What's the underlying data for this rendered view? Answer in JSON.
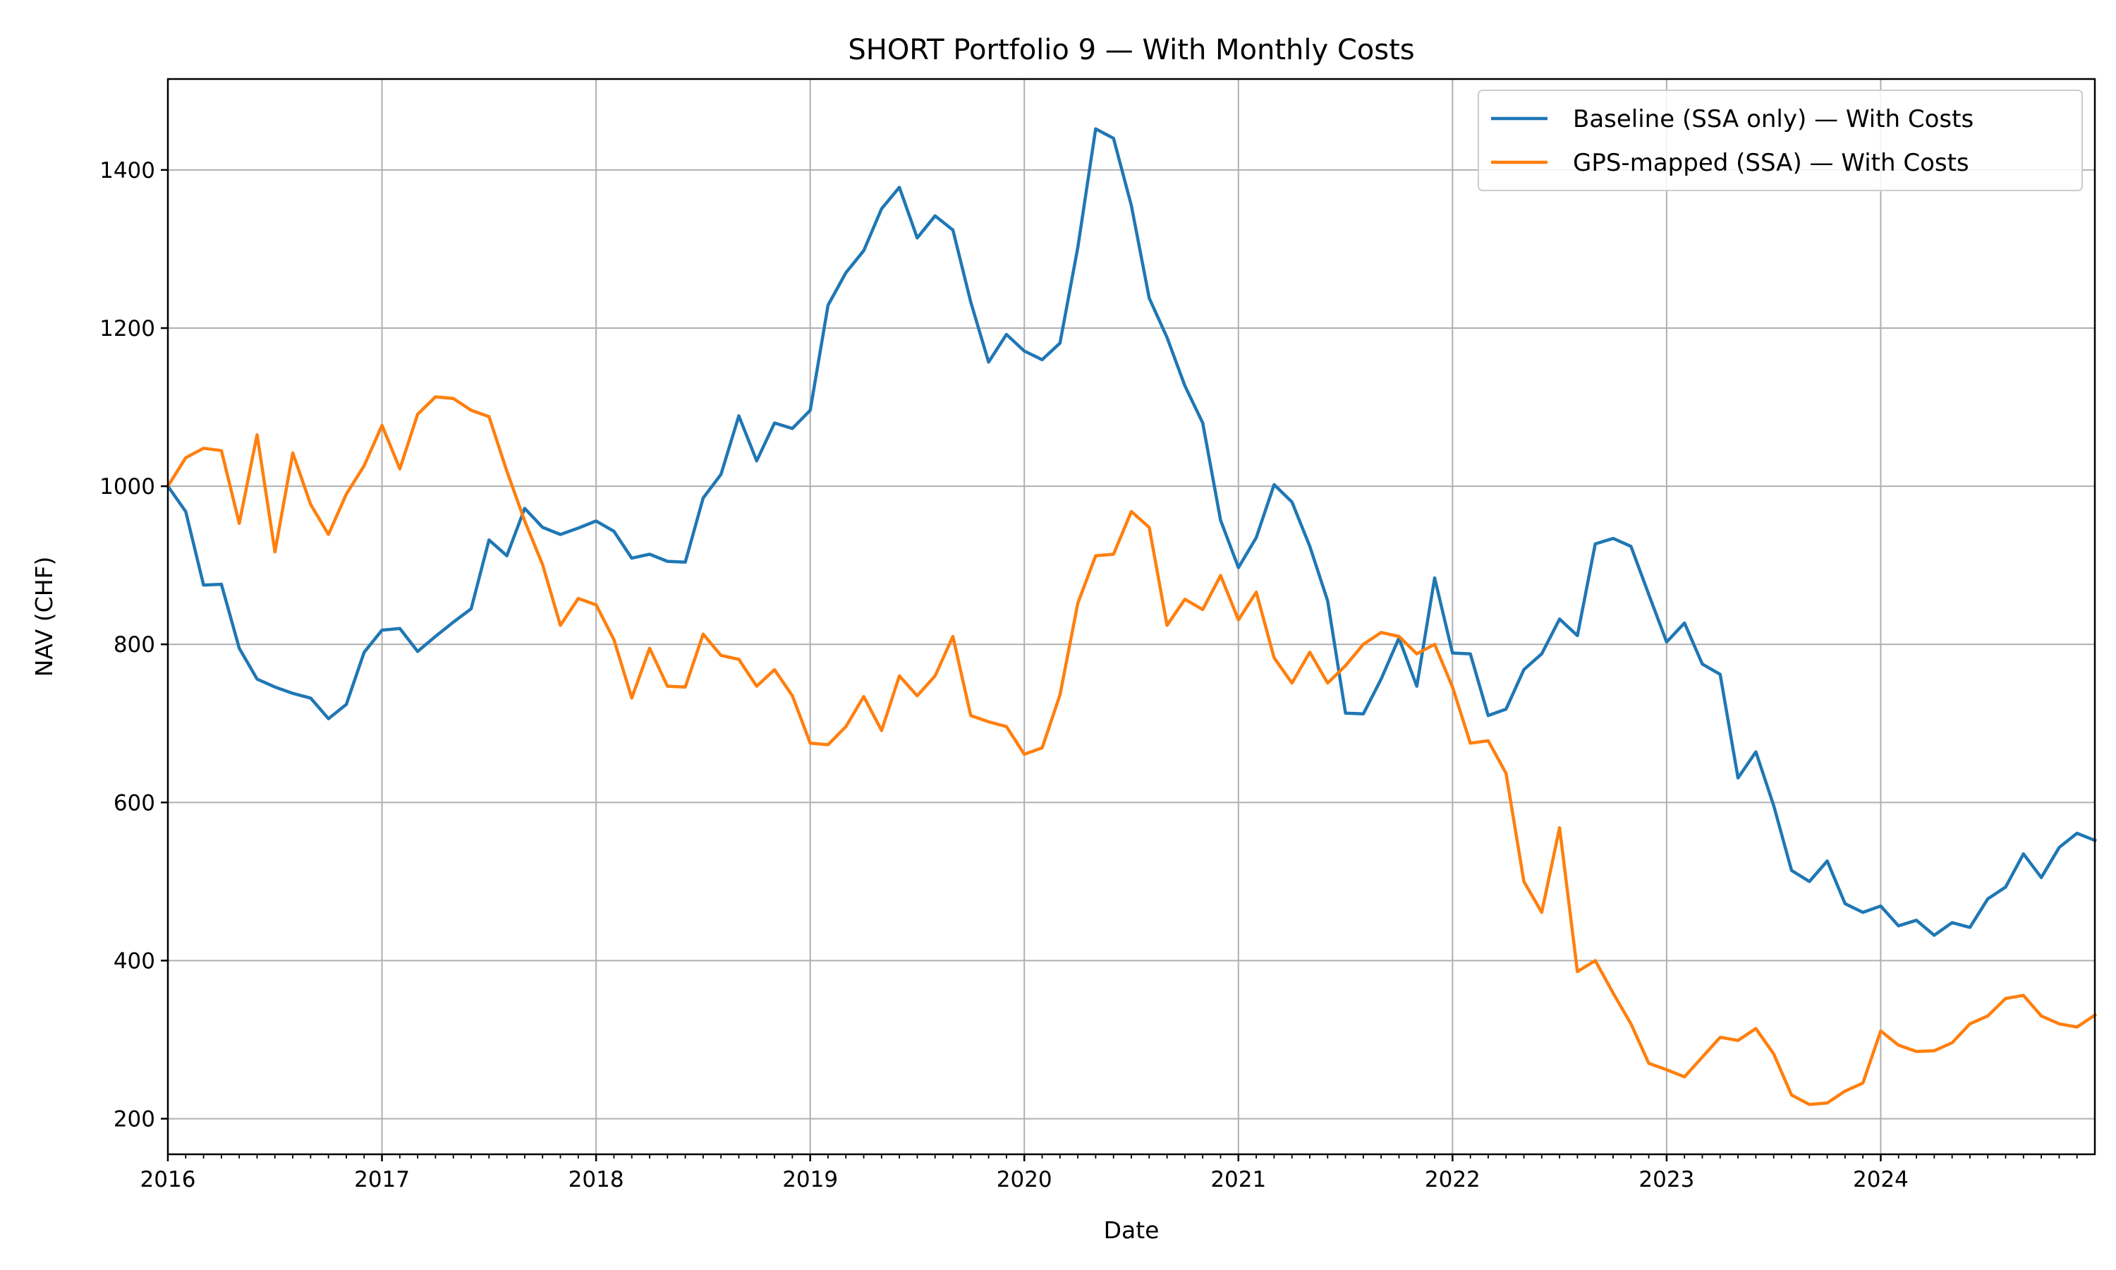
{
  "chart_data": {
    "type": "line",
    "title": "SHORT Portfolio 9 — With Monthly Costs",
    "xlabel": "Date",
    "ylabel": "NAV (CHF)",
    "xlim": [
      2016.0,
      2025.0
    ],
    "ylim": [
      155,
      1515
    ],
    "x_ticks": [
      2016,
      2017,
      2018,
      2019,
      2020,
      2021,
      2022,
      2023,
      2024
    ],
    "x_tick_labels": [
      "2016",
      "2017",
      "2018",
      "2019",
      "2020",
      "2021",
      "2022",
      "2023",
      "2024"
    ],
    "y_ticks": [
      200,
      400,
      600,
      800,
      1000,
      1200,
      1400
    ],
    "y_tick_labels": [
      "200",
      "400",
      "600",
      "800",
      "1000",
      "1200",
      "1400"
    ],
    "grid": true,
    "legend_position": "top-right",
    "start": "2016-01",
    "frequency": "monthly",
    "series": [
      {
        "name": "Baseline (SSA only) — With Costs",
        "color": "#1f77b4",
        "values": [
          1000,
          968,
          875,
          876,
          795,
          756,
          746,
          738,
          732,
          706,
          724,
          790,
          818,
          820,
          791,
          810,
          828,
          845,
          932,
          912,
          972,
          948,
          939,
          947,
          956,
          943,
          909,
          914,
          905,
          904,
          985,
          1015,
          1089,
          1032,
          1080,
          1073,
          1096,
          1229,
          1270,
          1298,
          1351,
          1378,
          1314,
          1342,
          1324,
          1233,
          1157,
          1192,
          1171,
          1160,
          1181,
          1302,
          1452,
          1440,
          1355,
          1238,
          1188,
          1127,
          1080,
          957,
          897,
          935,
          1002,
          980,
          924,
          855,
          713,
          712,
          756,
          808,
          747,
          884,
          789,
          788,
          710,
          718,
          768,
          788,
          832,
          811,
          927,
          934,
          924,
          863,
          803,
          827,
          775,
          762,
          631,
          664,
          596,
          514,
          500,
          526,
          472,
          461,
          469,
          444,
          451,
          432,
          448,
          442,
          478,
          493,
          535,
          505,
          543,
          561,
          552
        ]
      },
      {
        "name": "GPS-mapped (SSA) — With Costs",
        "color": "#ff7f0e",
        "values": [
          1000,
          1036,
          1048,
          1045,
          953,
          1065,
          917,
          1042,
          977,
          939,
          990,
          1026,
          1077,
          1022,
          1091,
          1113,
          1111,
          1096,
          1088,
          1019,
          956,
          901,
          824,
          858,
          850,
          806,
          732,
          795,
          747,
          746,
          813,
          786,
          781,
          747,
          768,
          735,
          675,
          673,
          696,
          734,
          691,
          760,
          735,
          760,
          810,
          710,
          702,
          696,
          661,
          669,
          736,
          852,
          912,
          914,
          968,
          948,
          824,
          857,
          844,
          887,
          831,
          866,
          783,
          751,
          790,
          751,
          773,
          800,
          815,
          810,
          788,
          800,
          746,
          675,
          678,
          637,
          500,
          461,
          568,
          386,
          400,
          359,
          320,
          270,
          262,
          253,
          278,
          303,
          299,
          314,
          282,
          230,
          218,
          220,
          235,
          245,
          311,
          293,
          285,
          286,
          296,
          320,
          330,
          352,
          356,
          330,
          320,
          316,
          331
        ]
      }
    ]
  }
}
